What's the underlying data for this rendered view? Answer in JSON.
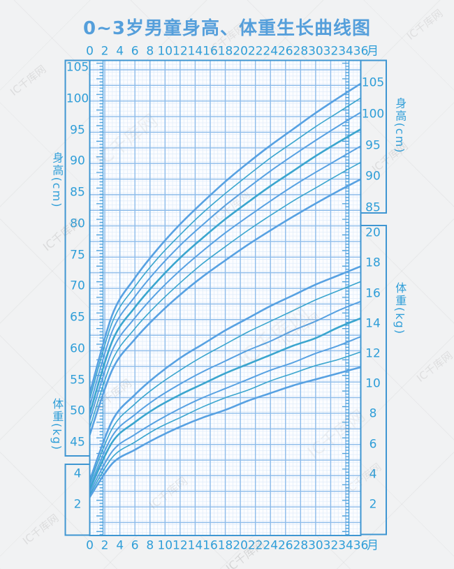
{
  "title": "0~3岁男童身高、体重生长曲线图",
  "axes": {
    "month_ticks": [
      "0",
      "2",
      "4",
      "6",
      "8",
      "10",
      "12",
      "14",
      "16",
      "18",
      "20",
      "22",
      "24",
      "26",
      "28",
      "30",
      "32",
      "34",
      "36"
    ],
    "month_unit": "月",
    "left_height_ticks": [
      "105",
      "100",
      "95",
      "90",
      "85",
      "80",
      "75",
      "70",
      "65",
      "60",
      "55",
      "50",
      "45"
    ],
    "left_weight_ticks": [
      "4",
      "2"
    ],
    "right_height_ticks": [
      "105",
      "100",
      "95",
      "90",
      "85"
    ],
    "right_weight_ticks": [
      "20",
      "18",
      "16",
      "14",
      "12",
      "10",
      "8",
      "6",
      "4",
      "2"
    ],
    "height_axis_title": "身高(cm)",
    "weight_axis_title": "体重(kg)"
  },
  "watermark": {
    "text": "IC千库网"
  },
  "colors": {
    "title_text": "#559fdb",
    "axis_text": "#2f9ed8",
    "border": "#3f96d2",
    "major_grid": "#8cbbea",
    "fine_grid": "#dfecf9",
    "curve_blue": "#57a1e2",
    "curve_teal": "#3aa5ce",
    "plot_background": "#fcfdff",
    "page_background": "#f1f2f3"
  },
  "chart_data": {
    "type": "line",
    "title": "0~3岁男童身高、体重生长曲线图",
    "x_months": [
      0,
      3,
      6,
      9,
      12,
      15,
      18,
      21,
      24,
      27,
      30,
      33,
      36
    ],
    "x_axis_ticks_months": [
      0,
      2,
      4,
      6,
      8,
      10,
      12,
      14,
      16,
      18,
      20,
      22,
      24,
      26,
      28,
      30,
      32,
      34,
      36
    ],
    "legend": "none",
    "grid": true,
    "height_cm": {
      "ylabel": "身高(cm)",
      "ylim": [
        45,
        105
      ],
      "series": [
        {
          "name": "height-curve-1-top",
          "values": [
            53.2,
            65.8,
            71.7,
            76.3,
            80.3,
            83.8,
            87.1,
            90.1,
            92.9,
            95.5,
            98.1,
            100.5,
            102.8
          ]
        },
        {
          "name": "height-curve-2",
          "values": [
            52.3,
            64.6,
            70.3,
            74.8,
            78.6,
            82.1,
            85.2,
            88.1,
            90.9,
            93.4,
            95.9,
            98.2,
            100.5
          ]
        },
        {
          "name": "height-curve-3",
          "values": [
            51.2,
            63.2,
            68.7,
            73.1,
            76.9,
            80.2,
            83.3,
            86.1,
            88.8,
            91.3,
            93.7,
            96.0,
            98.2
          ]
        },
        {
          "name": "height-curve-4-middle",
          "values": [
            50.0,
            61.6,
            67.0,
            71.2,
            74.9,
            78.1,
            81.1,
            83.8,
            86.4,
            88.8,
            91.2,
            93.4,
            95.5
          ]
        },
        {
          "name": "height-curve-5",
          "values": [
            48.9,
            60.1,
            65.3,
            69.4,
            72.9,
            76.0,
            78.9,
            81.5,
            84.0,
            86.4,
            88.6,
            90.7,
            92.8
          ]
        },
        {
          "name": "height-curve-6",
          "values": [
            47.7,
            58.5,
            63.6,
            67.5,
            70.9,
            74.0,
            76.7,
            79.3,
            81.7,
            84.0,
            86.1,
            88.2,
            90.2
          ]
        },
        {
          "name": "height-curve-7-bottom",
          "values": [
            46.6,
            57.0,
            61.9,
            65.7,
            69.0,
            71.9,
            74.5,
            77.0,
            79.3,
            81.5,
            83.6,
            85.6,
            87.5
          ]
        }
      ]
    },
    "weight_kg": {
      "ylabel": "体重(kg)",
      "ylim": [
        2,
        20
      ],
      "series": [
        {
          "name": "weight-curve-1-top",
          "values": [
            3.6,
            7.5,
            9.2,
            10.5,
            11.6,
            12.5,
            13.4,
            14.2,
            15.0,
            15.7,
            16.4,
            17.0,
            17.6
          ]
        },
        {
          "name": "weight-curve-2",
          "values": [
            3.4,
            7.0,
            8.6,
            9.8,
            10.8,
            11.7,
            12.5,
            13.3,
            14.0,
            14.7,
            15.4,
            16.0,
            16.6
          ]
        },
        {
          "name": "weight-curve-3",
          "values": [
            3.2,
            6.5,
            7.9,
            9.0,
            9.9,
            10.7,
            11.4,
            12.1,
            12.7,
            13.4,
            14.0,
            14.7,
            15.3
          ]
        },
        {
          "name": "weight-curve-4-middle",
          "values": [
            3.0,
            6.1,
            7.4,
            8.4,
            9.2,
            9.9,
            10.6,
            11.2,
            11.8,
            12.4,
            12.9,
            13.6,
            14.2
          ]
        },
        {
          "name": "weight-curve-5",
          "values": [
            2.8,
            5.5,
            6.6,
            7.5,
            8.3,
            9.0,
            9.6,
            10.2,
            10.8,
            11.3,
            11.9,
            12.4,
            13.0
          ]
        },
        {
          "name": "weight-curve-6",
          "values": [
            2.65,
            5.1,
            6.1,
            7.0,
            7.7,
            8.4,
            9.0,
            9.5,
            10.1,
            10.6,
            11.1,
            11.5,
            12.0
          ]
        },
        {
          "name": "weight-curve-7-bottom",
          "values": [
            2.5,
            4.7,
            5.6,
            6.4,
            7.1,
            7.7,
            8.2,
            8.8,
            9.3,
            9.8,
            10.2,
            10.6,
            11.0
          ]
        }
      ]
    }
  }
}
